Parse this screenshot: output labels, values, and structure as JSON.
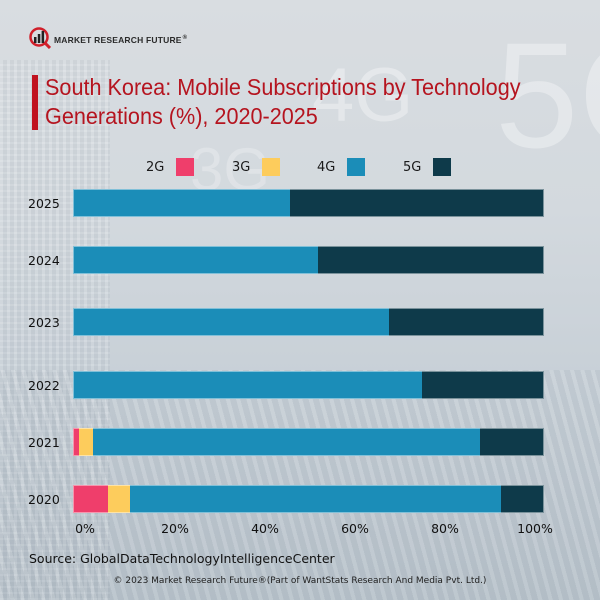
{
  "brand": {
    "logo_text": "MARKET RESEARCH FUTURE",
    "registered_mark": "®"
  },
  "background_text": [
    "3G",
    "4G",
    "5G"
  ],
  "chart_data": {
    "type": "bar",
    "orientation": "horizontal",
    "stacked": true,
    "title": "South Korea: Mobile Subscriptions by Technology Generations (%), 2020-2025",
    "xlabel": "",
    "ylabel": "",
    "xlim": [
      0,
      100
    ],
    "x_ticks": [
      "0%",
      "20%",
      "40%",
      "60%",
      "80%",
      "100%"
    ],
    "grid": false,
    "legend_position": "top",
    "categories": [
      "2025",
      "2024",
      "2023",
      "2022",
      "2021",
      "2020"
    ],
    "series": [
      {
        "name": "2G",
        "color": "#ef3e6b",
        "values": [
          0,
          0,
          0,
          0,
          1.3,
          7.4
        ]
      },
      {
        "name": "3G",
        "color": "#fdcc5c",
        "values": [
          0,
          0,
          0,
          0,
          3.0,
          4.7
        ]
      },
      {
        "name": "4G",
        "color": "#1b8db8",
        "values": [
          46,
          52,
          67,
          74,
          82.1,
          78.8
        ]
      },
      {
        "name": "5G",
        "color": "#0e3a4a",
        "values": [
          54,
          48,
          33,
          26,
          13.6,
          9.1
        ]
      }
    ]
  },
  "source": "Source: GlobalDataTechnologyIntelligenceCenter",
  "copyright": "© 2023 Market Research Future®(Part of WantStats Research And Media Pvt. Ltd.)",
  "colors": {
    "title": "#b5141f",
    "accent_bar": "#c0121f"
  }
}
